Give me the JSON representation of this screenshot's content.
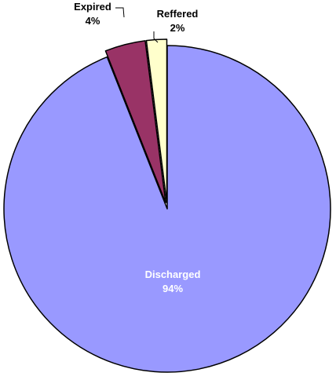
{
  "chart_data": {
    "type": "pie",
    "exploded": true,
    "slices": [
      {
        "label": "Discharged",
        "value": 94,
        "value_label": "94%",
        "color": "#9999FF",
        "text_color": "#ffffff"
      },
      {
        "label": "Expired",
        "value": 4,
        "value_label": "4%",
        "color": "#993366",
        "text_color": "#000000"
      },
      {
        "label": "Reffered",
        "value": 2,
        "value_label": "2%",
        "color": "#FFFFCC",
        "text_color": "#000000"
      }
    ]
  }
}
